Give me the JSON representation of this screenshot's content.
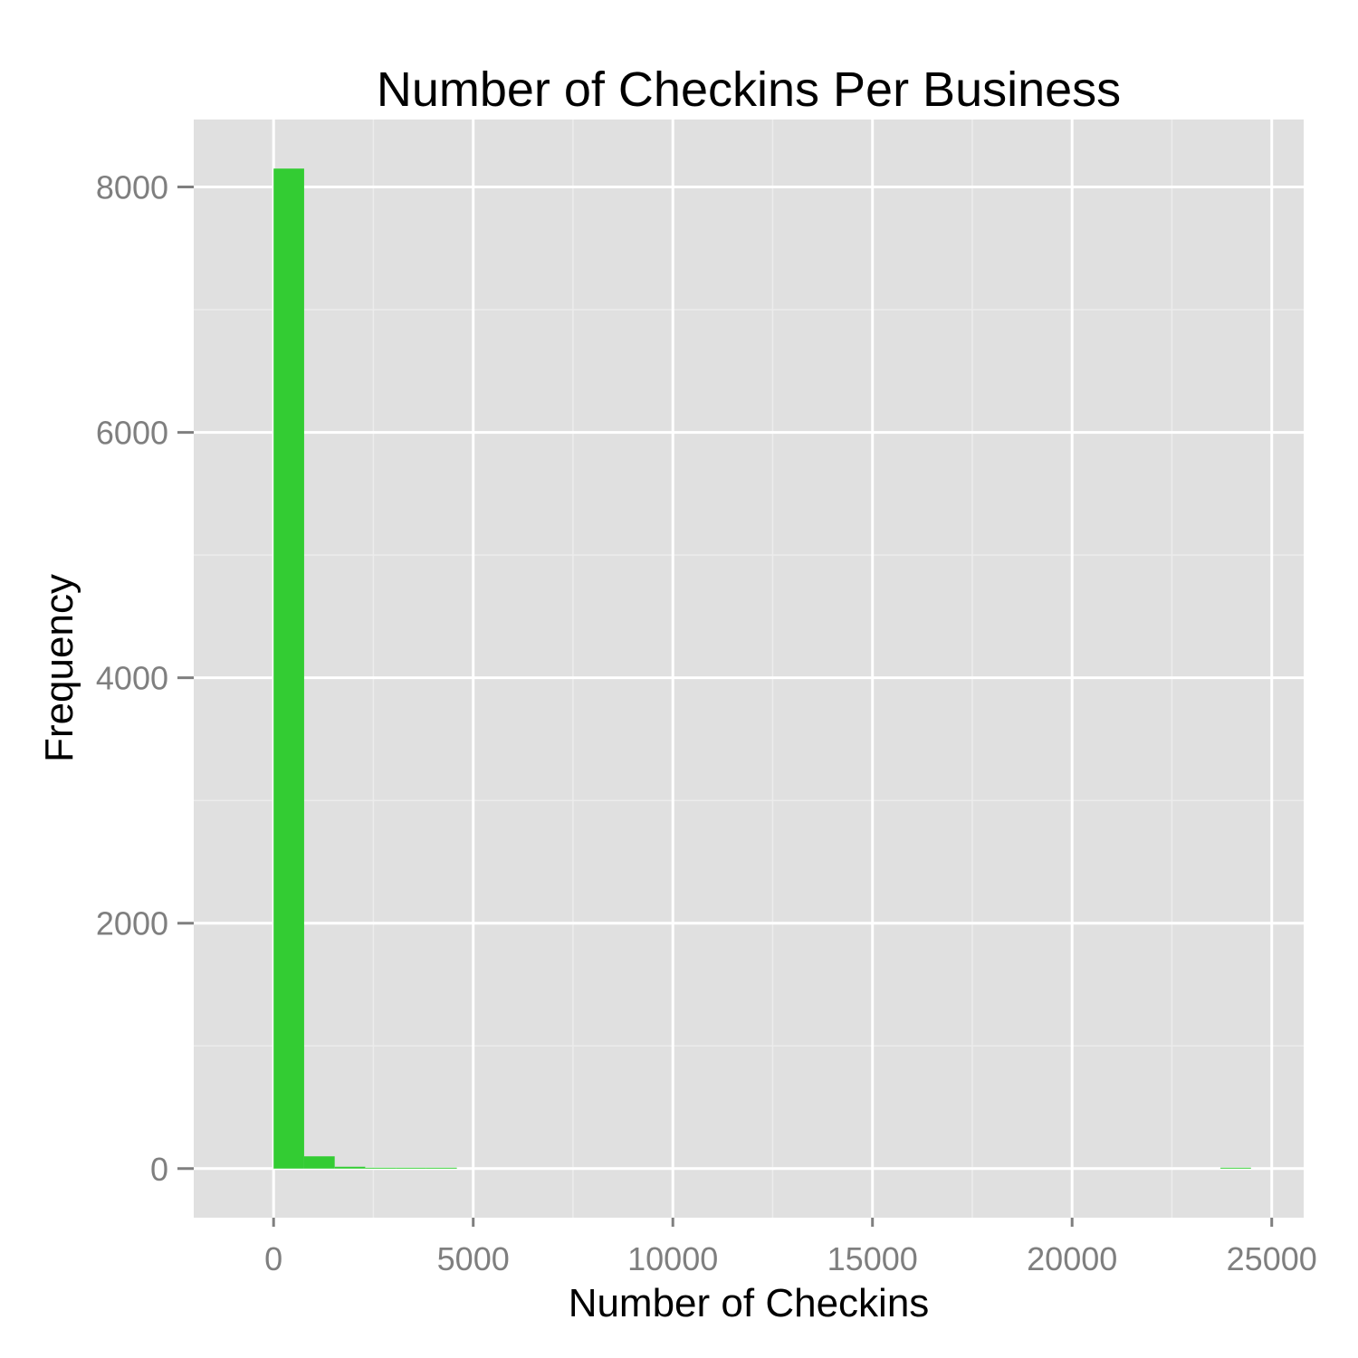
{
  "chart_data": {
    "type": "bar",
    "title": "Number of Checkins Per Business",
    "xlabel": "Number of Checkins",
    "ylabel": "Frequency",
    "xlim": [
      -2000,
      25800
    ],
    "ylim": [
      -400,
      8550
    ],
    "x_ticks": [
      0,
      5000,
      10000,
      15000,
      20000,
      25000
    ],
    "x_tick_labels": [
      "0",
      "5000",
      "10000",
      "15000",
      "20000",
      "25000"
    ],
    "y_ticks": [
      0,
      2000,
      4000,
      6000,
      8000
    ],
    "y_tick_labels": [
      "0",
      "2000",
      "4000",
      "6000",
      "8000"
    ],
    "grid": true,
    "bin_width": 765,
    "bins": [
      {
        "x0": 0,
        "x1": 765,
        "count": 8150
      },
      {
        "x0": 765,
        "x1": 1530,
        "count": 100
      },
      {
        "x0": 1530,
        "x1": 2295,
        "count": 15
      },
      {
        "x0": 2295,
        "x1": 3060,
        "count": 5
      },
      {
        "x0": 3060,
        "x1": 3825,
        "count": 3
      },
      {
        "x0": 3825,
        "x1": 4590,
        "count": 1
      },
      {
        "x0": 23715,
        "x1": 24480,
        "count": 1
      }
    ],
    "colors": {
      "bar": "#33cc33",
      "panel": "#e0e0e0",
      "grid_major": "#ffffff",
      "grid_minor": "#ececec",
      "tick": "#7f7f7f"
    }
  }
}
